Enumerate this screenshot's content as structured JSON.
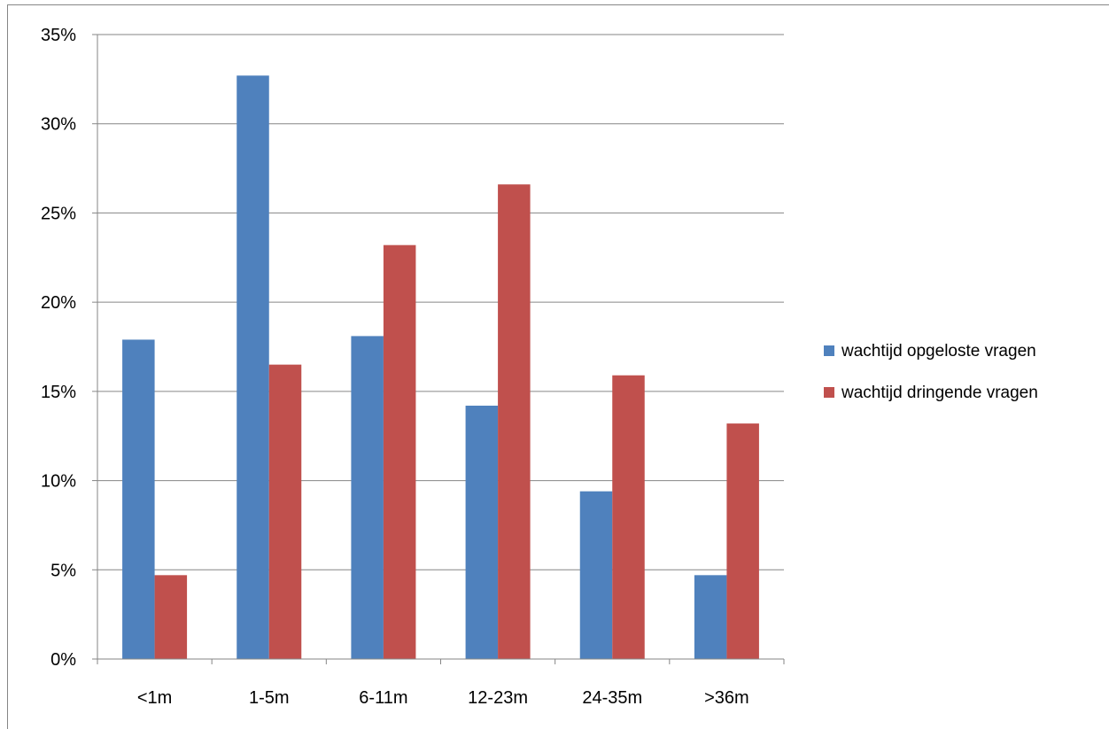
{
  "chart_data": {
    "type": "bar",
    "title": "",
    "xlabel": "",
    "ylabel": "",
    "categories": [
      "<1m",
      "1-5m",
      "6-11m",
      "12-23m",
      "24-35m",
      ">36m"
    ],
    "series": [
      {
        "name": "wachtijd opgeloste vragen",
        "color": "#4F81BD",
        "values": [
          17.9,
          32.7,
          18.1,
          14.2,
          9.4,
          4.7
        ]
      },
      {
        "name": "wachtijd dringende vragen",
        "color": "#C0504D",
        "values": [
          4.7,
          16.5,
          23.2,
          26.6,
          15.9,
          13.2
        ]
      }
    ],
    "ylim": [
      0,
      35
    ],
    "yticks": [
      0,
      5,
      10,
      15,
      20,
      25,
      30,
      35
    ],
    "ytick_labels": [
      "0%",
      "5%",
      "10%",
      "15%",
      "20%",
      "25%",
      "30%",
      "35%"
    ],
    "grid": true,
    "legend": "right"
  }
}
